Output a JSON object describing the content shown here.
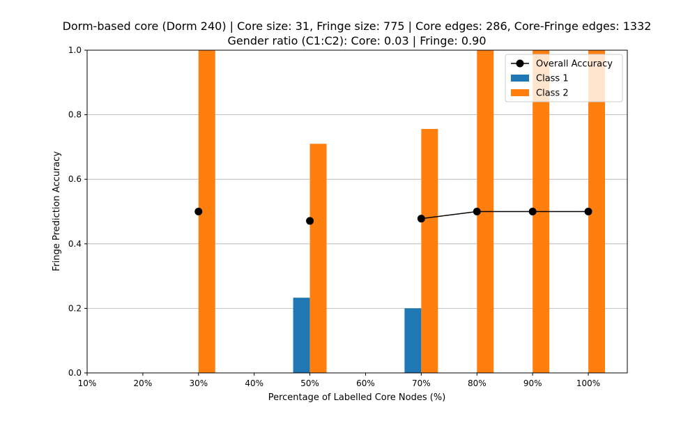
{
  "chart_data": {
    "type": "bar",
    "title": "Dorm-based core (Dorm 240) | Core size: 31, Fringe size: 775 | Core edges: 286, Core-Fringe edges: 1332",
    "subtitle": "Gender ratio (C1:C2): Core: 0.03 | Fringe: 0.90",
    "xlabel": "Percentage of Labelled Core Nodes (%)",
    "ylabel": "Fringe Prediction Accuracy",
    "xlim": [
      10,
      107
    ],
    "ylim": [
      0,
      1.0
    ],
    "x_ticks": [
      "10%",
      "20%",
      "30%",
      "40%",
      "50%",
      "60%",
      "70%",
      "80%",
      "90%",
      "100%"
    ],
    "x_tick_values": [
      10,
      20,
      30,
      40,
      50,
      60,
      70,
      80,
      90,
      100
    ],
    "y_ticks": [
      "0.0",
      "0.2",
      "0.4",
      "0.6",
      "0.8",
      "1.0"
    ],
    "y_tick_values": [
      0,
      0.2,
      0.4,
      0.6,
      0.8,
      1.0
    ],
    "grid": "horizontal",
    "legend_position": "top-right",
    "bar_width": 3,
    "series": [
      {
        "name": "Class 1",
        "kind": "bar",
        "color": "#1f77b4",
        "x": [
          30,
          50,
          70,
          80,
          90,
          100
        ],
        "values": [
          0.0,
          0.233,
          0.2,
          0.0,
          0.0,
          0.0
        ]
      },
      {
        "name": "Class 2",
        "kind": "bar",
        "color": "#ff7f0e",
        "x": [
          30,
          50,
          70,
          80,
          90,
          100
        ],
        "values": [
          1.0,
          0.71,
          0.756,
          1.0,
          1.0,
          1.0
        ]
      },
      {
        "name": "Overall Accuracy",
        "kind": "line",
        "color": "#000000",
        "x": [
          30,
          50,
          70,
          80,
          90,
          100
        ],
        "values": [
          0.5,
          0.471,
          0.478,
          0.5,
          0.5,
          0.5
        ],
        "connected_from_index": 2
      }
    ]
  }
}
